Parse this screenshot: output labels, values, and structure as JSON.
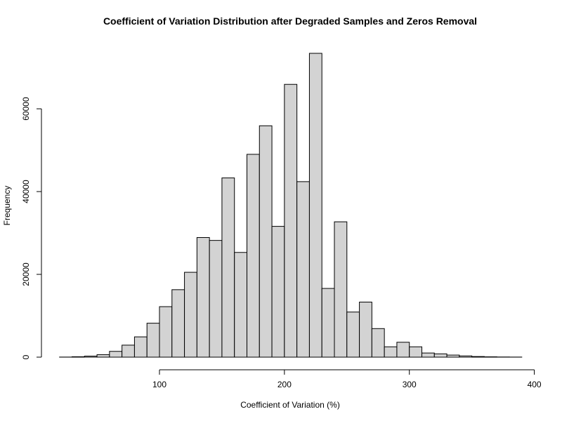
{
  "chart_data": {
    "type": "bar",
    "title": "Coefficient of Variation Distribution after Degraded Samples and Zeros Removal",
    "xlabel": "Coefficient of Variation (%)",
    "ylabel": "Frequency",
    "bin_width": 10,
    "bins_start": [
      20,
      30,
      40,
      50,
      60,
      70,
      80,
      90,
      100,
      110,
      120,
      130,
      140,
      150,
      160,
      170,
      180,
      190,
      200,
      210,
      220,
      230,
      240,
      250,
      260,
      270,
      280,
      290,
      300,
      310,
      320,
      330,
      340,
      350,
      360,
      370,
      380
    ],
    "values": [
      20,
      100,
      250,
      600,
      1400,
      2900,
      4900,
      8200,
      12200,
      16300,
      20500,
      28900,
      28200,
      43300,
      25300,
      49000,
      55900,
      31600,
      65900,
      42400,
      73400,
      16600,
      32700,
      10900,
      13300,
      6900,
      2500,
      3600,
      2500,
      1000,
      800,
      500,
      300,
      150,
      80,
      40,
      20
    ],
    "xlim": [
      20,
      390
    ],
    "ylim": [
      0,
      73400
    ],
    "x_ticks": [
      100,
      200,
      300,
      400
    ],
    "y_ticks": [
      0,
      20000,
      40000,
      60000
    ],
    "x_tick_labels": [
      "100",
      "200",
      "300",
      "400"
    ],
    "y_tick_labels": [
      "0",
      "20000",
      "40000",
      "60000"
    ],
    "colors": {
      "bar_fill": "#d3d3d3",
      "bar_stroke": "#000000"
    },
    "grid": false,
    "legend": "none"
  }
}
